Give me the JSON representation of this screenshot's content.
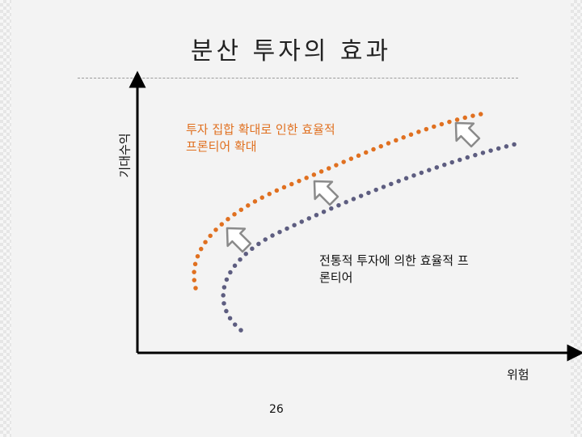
{
  "title": "분산 투자의 효과",
  "axes": {
    "y_label": "기대수익",
    "x_label": "위험"
  },
  "annotations": {
    "expanded_frontier": [
      "투자 집합 확대로 인한 효율적",
      "프론티어 확대"
    ],
    "traditional_frontier": [
      "전통적 투자에 의한 효율적 프",
      "론티어"
    ]
  },
  "page_number": "26",
  "colors": {
    "expanded_frontier": "#e07020",
    "traditional_frontier": "#5d5d80",
    "arrow_outline": "#8a8a8a",
    "axis": "#000000"
  },
  "icons": [
    "shift-arrow-icon",
    "shift-arrow-icon",
    "shift-arrow-icon"
  ]
}
